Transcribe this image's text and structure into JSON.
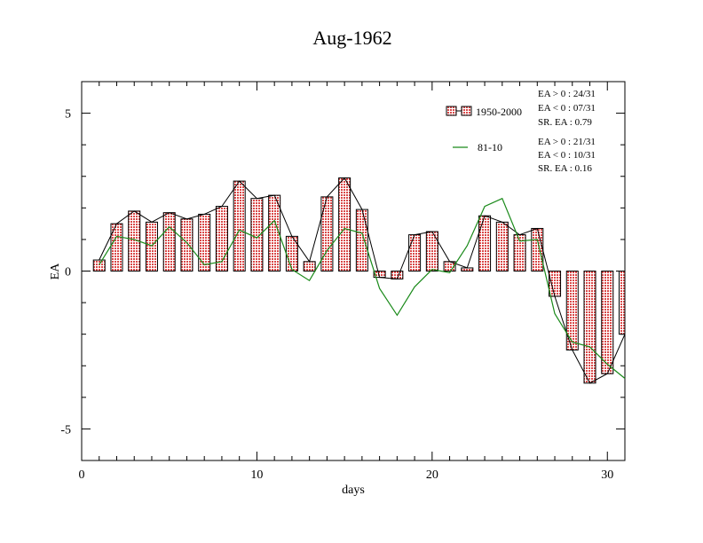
{
  "chart_data": {
    "type": "bar",
    "title": "Aug-1962",
    "xlabel": "days",
    "ylabel": "EA",
    "xlim": [
      0,
      31
    ],
    "ylim": [
      -6,
      6
    ],
    "x_ticks": [
      0,
      10,
      20,
      30
    ],
    "y_ticks": [
      -5,
      0,
      5
    ],
    "x_tick_labels": [
      "0",
      "10",
      "20",
      "30"
    ],
    "y_tick_labels": [
      "-5",
      "0",
      "5"
    ],
    "grid": false,
    "legend_position": "top-right",
    "x": [
      1,
      2,
      3,
      4,
      5,
      6,
      7,
      8,
      9,
      10,
      11,
      12,
      13,
      14,
      15,
      16,
      17,
      18,
      19,
      20,
      21,
      22,
      23,
      24,
      25,
      26,
      27,
      28,
      29,
      30,
      31
    ],
    "series": [
      {
        "name": "1950-2000",
        "kind": "bar",
        "color": "#e06060",
        "values": [
          0.35,
          1.5,
          1.9,
          1.55,
          1.85,
          1.65,
          1.8,
          2.05,
          2.85,
          2.3,
          2.4,
          1.1,
          0.3,
          2.35,
          2.95,
          1.95,
          -0.2,
          -0.25,
          1.15,
          1.25,
          0.3,
          0.1,
          1.75,
          1.55,
          1.15,
          1.35,
          -0.8,
          -2.5,
          -3.55,
          -3.25,
          -2.0
        ]
      },
      {
        "name": "81-10",
        "kind": "line",
        "color": "#1a8a1a",
        "values": [
          0.2,
          1.1,
          1.0,
          0.8,
          1.4,
          0.9,
          0.2,
          0.3,
          1.3,
          1.05,
          1.6,
          0.05,
          -0.3,
          0.65,
          1.35,
          1.2,
          -0.55,
          -1.4,
          -0.5,
          0.05,
          -0.05,
          0.8,
          2.05,
          2.3,
          0.95,
          1.0,
          -1.35,
          -2.25,
          -2.4,
          -2.95,
          -3.4
        ]
      }
    ],
    "stats": [
      {
        "lines": [
          "EA > 0 : 24/31",
          "EA < 0 : 07/31",
          "SR. EA :  0.79"
        ]
      },
      {
        "lines": [
          "EA > 0 : 21/31",
          "EA < 0 : 10/31",
          "SR. EA :  0.16"
        ]
      }
    ]
  }
}
